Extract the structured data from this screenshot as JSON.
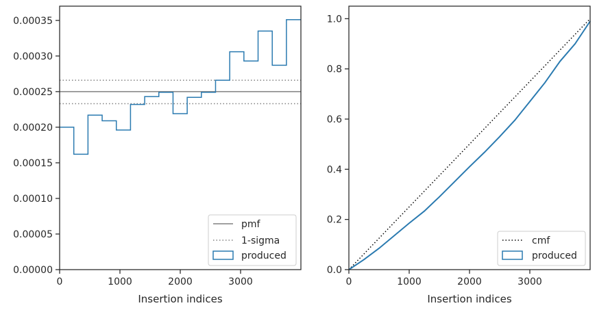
{
  "colors": {
    "accent": "#2a7ab0",
    "reference": "#808080",
    "cmf_line": "#000000",
    "axes": "#262626"
  },
  "chart_data": [
    {
      "type": "step",
      "xlabel": "Insertion indices",
      "ylabel": "",
      "xlim": [
        0,
        4000
      ],
      "ylim": [
        0,
        0.00037
      ],
      "xticks": [
        "0",
        "1000",
        "2000",
        "3000"
      ],
      "xtick_values": [
        0,
        1000,
        2000,
        3000
      ],
      "yticks": [
        "0.00000",
        "0.00005",
        "0.00010",
        "0.00015",
        "0.00020",
        "0.00025",
        "0.00030",
        "0.00035"
      ],
      "ytick_values": [
        0,
        5e-05,
        0.0001,
        0.00015,
        0.0002,
        0.00025,
        0.0003,
        0.00035
      ],
      "bin_edges": [
        0,
        235,
        470,
        705,
        940,
        1175,
        1410,
        1645,
        1880,
        2115,
        2350,
        2585,
        2820,
        3055,
        3290,
        3525,
        3760,
        4000
      ],
      "values": [
        0.0002,
        0.000162,
        0.000217,
        0.000209,
        0.000196,
        0.000232,
        0.000243,
        0.000249,
        0.000219,
        0.000242,
        0.000249,
        0.000266,
        0.000306,
        0.000293,
        0.000335,
        0.000287,
        0.000351
      ],
      "reference_lines": {
        "pmf": 0.00025,
        "sigma_upper": 0.000266,
        "sigma_lower": 0.000233
      },
      "legend": [
        "pmf",
        "1-sigma",
        "produced"
      ],
      "legend_position": "lower-right"
    },
    {
      "type": "line",
      "xlabel": "Insertion indices",
      "ylabel": "",
      "xlim": [
        0,
        4000
      ],
      "ylim": [
        0,
        1.05
      ],
      "xticks": [
        "0",
        "1000",
        "2000",
        "3000"
      ],
      "xtick_values": [
        0,
        1000,
        2000,
        3000
      ],
      "yticks": [
        "0.0",
        "0.2",
        "0.4",
        "0.6",
        "0.8",
        "1.0"
      ],
      "ytick_values": [
        0,
        0.2,
        0.4,
        0.6,
        0.8,
        1.0
      ],
      "cmf": {
        "x": [
          0,
          4000
        ],
        "y": [
          0,
          1.0
        ]
      },
      "produced": {
        "x": [
          0,
          250,
          500,
          750,
          1000,
          1250,
          1500,
          1750,
          2000,
          2250,
          2500,
          2750,
          3000,
          3250,
          3500,
          3750,
          4000
        ],
        "y": [
          0,
          0.04,
          0.085,
          0.135,
          0.185,
          0.233,
          0.29,
          0.35,
          0.41,
          0.468,
          0.53,
          0.595,
          0.67,
          0.745,
          0.83,
          0.9,
          0.99
        ]
      },
      "legend": [
        "cmf",
        "produced"
      ],
      "legend_position": "lower-right"
    }
  ]
}
